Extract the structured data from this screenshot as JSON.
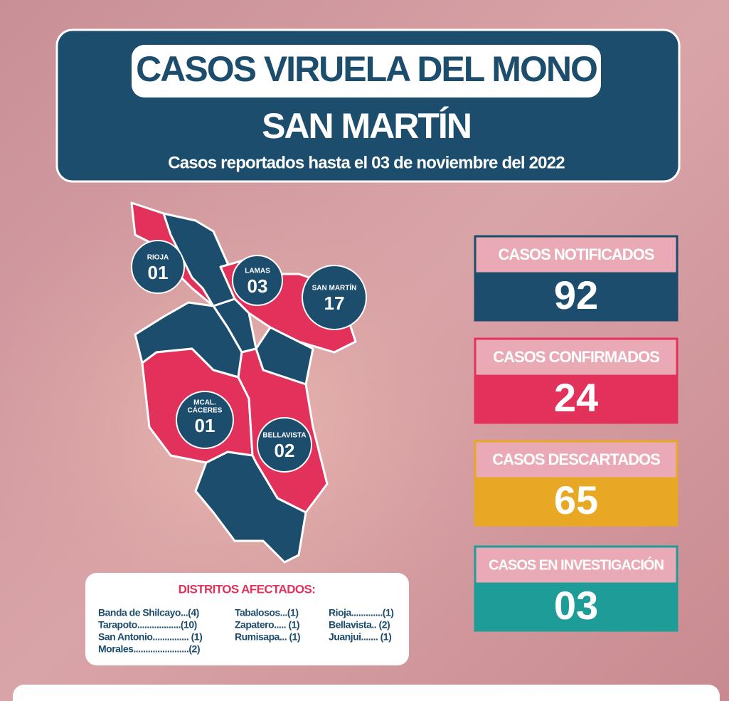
{
  "header": {
    "title": "CASOS VIRUELA DEL MONO",
    "region": "SAN MARTÍN",
    "subtitle": "Casos reportados hasta el 03 de noviembre del 2022"
  },
  "map": {
    "regions": [
      {
        "name": [
          "RIOJA"
        ],
        "value": "01"
      },
      {
        "name": [
          "LAMAS"
        ],
        "value": "03"
      },
      {
        "name": [
          "SAN MARTÍN"
        ],
        "value": "17"
      },
      {
        "name": [
          "MCAL.",
          "CÁCERES"
        ],
        "value": "01"
      },
      {
        "name": [
          "BELLAVISTA"
        ],
        "value": "02"
      }
    ]
  },
  "stats": [
    {
      "label": "CASOS NOTIFICADOS",
      "value": "92"
    },
    {
      "label": "CASOS CONFIRMADOS",
      "value": "24"
    },
    {
      "label": "CASOS DESCARTADOS",
      "value": "65"
    },
    {
      "label": "CASOS EN INVESTIGACIÓN",
      "value": "03"
    }
  ],
  "districts": {
    "title": "DISTRITOS AFECTADOS:",
    "columns": [
      [
        "Banda de Shilcayo...(4)",
        "Tarapoto..................(10)",
        "San Antonio............... (1)",
        "Morales.......................(2)"
      ],
      [
        "Tabalosos...(1)",
        "Zapatero..... (1)",
        "Rumisapa... (1)"
      ],
      [
        "Rioja.............(1)",
        "Bellavista.. (2)",
        "Juanjui....... (1)"
      ]
    ]
  }
}
